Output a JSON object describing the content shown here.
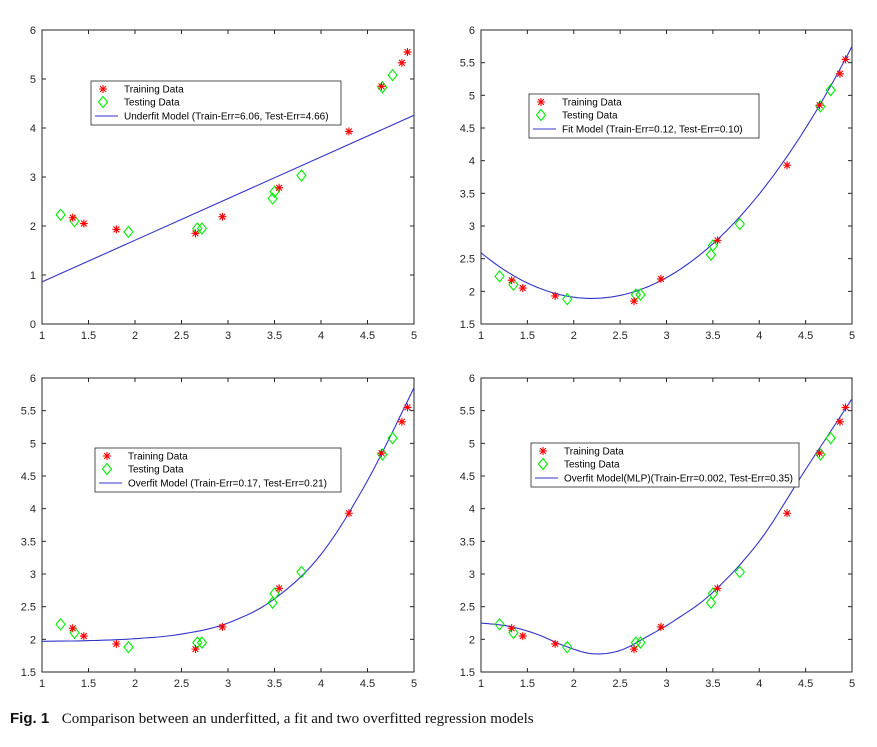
{
  "figure": {
    "caption_label": "Fig. 1",
    "caption_text": "Comparison between an underfitted, a fit and two overfitted regression models"
  },
  "style": {
    "train_color": "#ff0000",
    "test_color": "#00ee00",
    "curve_color": "#3333cc",
    "axis_color": "#262626"
  },
  "chart_data": [
    {
      "type": "scatter",
      "xlim": [
        1,
        5
      ],
      "ylim": [
        0,
        6
      ],
      "xticks": [
        "1",
        "1.5",
        "2",
        "2.5",
        "3",
        "3.5",
        "4",
        "4.5",
        "5"
      ],
      "yticks": [
        "0",
        "1",
        "2",
        "3",
        "4",
        "5",
        "6"
      ],
      "legend_position": "top-left",
      "legend": [
        "Training Data",
        "Testing Data",
        "Underfit Model (Train-Err=6.06, Test-Err=4.66)"
      ],
      "training": [
        [
          1.33,
          2.17
        ],
        [
          1.45,
          2.05
        ],
        [
          1.8,
          1.93
        ],
        [
          2.65,
          1.85
        ],
        [
          2.94,
          2.19
        ],
        [
          3.55,
          2.78
        ],
        [
          4.3,
          3.93
        ],
        [
          4.65,
          4.85
        ],
        [
          4.87,
          5.33
        ],
        [
          4.93,
          5.55
        ]
      ],
      "testing": [
        [
          1.2,
          2.23
        ],
        [
          1.35,
          2.1
        ],
        [
          1.93,
          1.88
        ],
        [
          2.67,
          1.95
        ],
        [
          2.72,
          1.95
        ],
        [
          3.48,
          2.56
        ],
        [
          3.5,
          2.7
        ],
        [
          3.79,
          3.03
        ],
        [
          4.66,
          4.83
        ],
        [
          4.77,
          5.08
        ]
      ],
      "curve": {
        "kind": "linear",
        "slope": 0.85,
        "intercept": 0.01
      }
    },
    {
      "type": "scatter",
      "xlim": [
        1,
        5
      ],
      "ylim": [
        1.5,
        6
      ],
      "xticks": [
        "1",
        "1.5",
        "2",
        "2.5",
        "3",
        "3.5",
        "4",
        "4.5",
        "5"
      ],
      "yticks": [
        "1.5",
        "2",
        "2.5",
        "3",
        "3.5",
        "4",
        "4.5",
        "5",
        "5.5",
        "6"
      ],
      "legend_position": "top-center",
      "legend": [
        "Training Data",
        "Testing Data",
        "Fit Model (Train-Err=0.12, Test-Err=0.10)"
      ],
      "training": [
        [
          1.33,
          2.17
        ],
        [
          1.45,
          2.05
        ],
        [
          1.8,
          1.93
        ],
        [
          2.65,
          1.85
        ],
        [
          2.94,
          2.19
        ],
        [
          3.55,
          2.78
        ],
        [
          4.3,
          3.93
        ],
        [
          4.65,
          4.85
        ],
        [
          4.87,
          5.33
        ],
        [
          4.93,
          5.55
        ]
      ],
      "testing": [
        [
          1.2,
          2.23
        ],
        [
          1.35,
          2.1
        ],
        [
          1.93,
          1.88
        ],
        [
          2.67,
          1.95
        ],
        [
          2.72,
          1.95
        ],
        [
          3.48,
          2.56
        ],
        [
          3.5,
          2.7
        ],
        [
          3.79,
          3.03
        ],
        [
          4.66,
          4.83
        ],
        [
          4.77,
          5.08
        ]
      ],
      "curve": {
        "kind": "poly",
        "coeffs": [
          4.25,
          -2.15,
          0.49
        ]
      }
    },
    {
      "type": "scatter",
      "xlim": [
        1,
        5
      ],
      "ylim": [
        1.5,
        6
      ],
      "xticks": [
        "1",
        "1.5",
        "2",
        "2.5",
        "3",
        "3.5",
        "4",
        "4.5",
        "5"
      ],
      "yticks": [
        "1.5",
        "2",
        "2.5",
        "3",
        "3.5",
        "4",
        "4.5",
        "5",
        "5.5",
        "6"
      ],
      "legend_position": "center-left",
      "legend": [
        "Training Data",
        "Testing Data",
        "Overfit Model (Train-Err=0.17, Test-Err=0.21)"
      ],
      "training": [
        [
          1.33,
          2.17
        ],
        [
          1.45,
          2.05
        ],
        [
          1.8,
          1.93
        ],
        [
          2.65,
          1.85
        ],
        [
          2.94,
          2.19
        ],
        [
          3.55,
          2.78
        ],
        [
          4.3,
          3.93
        ],
        [
          4.65,
          4.85
        ],
        [
          4.87,
          5.33
        ],
        [
          4.93,
          5.55
        ]
      ],
      "testing": [
        [
          1.2,
          2.23
        ],
        [
          1.35,
          2.1
        ],
        [
          1.93,
          1.88
        ],
        [
          2.67,
          1.95
        ],
        [
          2.72,
          1.95
        ],
        [
          3.48,
          2.56
        ],
        [
          3.5,
          2.7
        ],
        [
          3.79,
          3.03
        ],
        [
          4.66,
          4.83
        ],
        [
          4.77,
          5.08
        ]
      ],
      "curve": {
        "kind": "points",
        "xy": [
          [
            1,
            1.97
          ],
          [
            1.5,
            1.98
          ],
          [
            2,
            2.01
          ],
          [
            2.5,
            2.08
          ],
          [
            3,
            2.25
          ],
          [
            3.5,
            2.62
          ],
          [
            4,
            3.3
          ],
          [
            4.5,
            4.43
          ],
          [
            5,
            5.85
          ]
        ]
      }
    },
    {
      "type": "scatter",
      "xlim": [
        1,
        5
      ],
      "ylim": [
        1.5,
        6
      ],
      "xticks": [
        "1",
        "1.5",
        "2",
        "2.5",
        "3",
        "3.5",
        "4",
        "4.5",
        "5"
      ],
      "yticks": [
        "1.5",
        "2",
        "2.5",
        "3",
        "3.5",
        "4",
        "4.5",
        "5",
        "5.5",
        "6"
      ],
      "legend_position": "center-left",
      "legend": [
        "Training Data",
        "Testing Data",
        "Overfit Model(MLP)(Train-Err=0.002, Test-Err=0.35)"
      ],
      "training": [
        [
          1.33,
          2.17
        ],
        [
          1.45,
          2.05
        ],
        [
          1.8,
          1.93
        ],
        [
          2.65,
          1.85
        ],
        [
          2.94,
          2.19
        ],
        [
          3.55,
          2.78
        ],
        [
          4.3,
          3.93
        ],
        [
          4.65,
          4.85
        ],
        [
          4.87,
          5.33
        ],
        [
          4.93,
          5.55
        ]
      ],
      "testing": [
        [
          1.2,
          2.23
        ],
        [
          1.35,
          2.1
        ],
        [
          1.93,
          1.88
        ],
        [
          2.67,
          1.95
        ],
        [
          2.72,
          1.95
        ],
        [
          3.48,
          2.56
        ],
        [
          3.5,
          2.7
        ],
        [
          3.79,
          3.03
        ],
        [
          4.66,
          4.83
        ],
        [
          4.77,
          5.08
        ]
      ],
      "curve": {
        "kind": "points",
        "xy": [
          [
            1,
            2.25
          ],
          [
            1.3,
            2.2
          ],
          [
            1.6,
            2.08
          ],
          [
            1.9,
            1.9
          ],
          [
            2.2,
            1.78
          ],
          [
            2.5,
            1.83
          ],
          [
            2.8,
            2.05
          ],
          [
            3.1,
            2.3
          ],
          [
            3.5,
            2.72
          ],
          [
            4,
            3.5
          ],
          [
            4.5,
            4.6
          ],
          [
            5,
            5.68
          ]
        ]
      }
    }
  ]
}
